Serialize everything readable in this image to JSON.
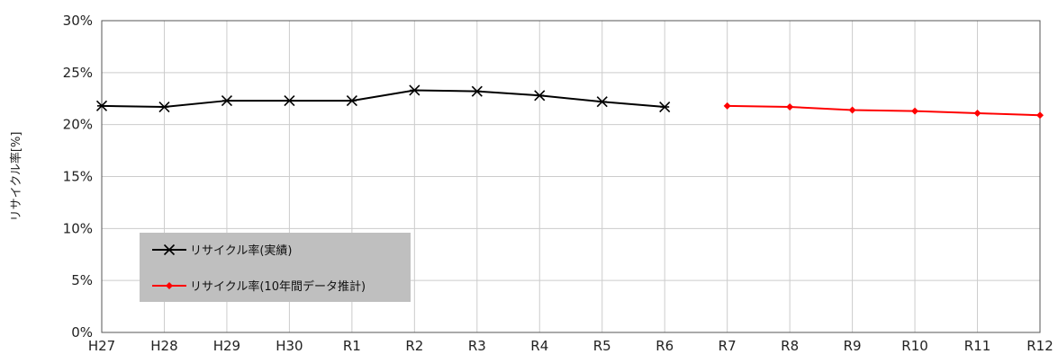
{
  "chart_data": {
    "type": "line",
    "categories": [
      "H27",
      "H28",
      "H29",
      "H30",
      "R1",
      "R2",
      "R3",
      "R4",
      "R5",
      "R6",
      "R7",
      "R8",
      "R9",
      "R10",
      "R11",
      "R12"
    ],
    "ylabel": "リサイクル率[%]",
    "ylim": [
      0,
      30
    ],
    "yticks": [
      "0%",
      "5%",
      "10%",
      "15%",
      "20%",
      "25%",
      "30%"
    ],
    "grid": true,
    "legend_position": "bottom-left",
    "series": [
      {
        "name": "リサイクル率(実績)",
        "color": "#000000",
        "marker": "asterisk",
        "values": [
          21.8,
          21.7,
          22.3,
          22.3,
          22.3,
          23.3,
          23.2,
          22.8,
          22.2,
          21.7,
          null,
          null,
          null,
          null,
          null,
          null
        ]
      },
      {
        "name": "リサイクル率(10年間データ推計)",
        "color": "#ff0000",
        "marker": "diamond",
        "values": [
          null,
          null,
          null,
          null,
          null,
          null,
          null,
          null,
          null,
          null,
          21.8,
          21.7,
          21.4,
          21.3,
          21.1,
          20.9
        ]
      }
    ]
  }
}
